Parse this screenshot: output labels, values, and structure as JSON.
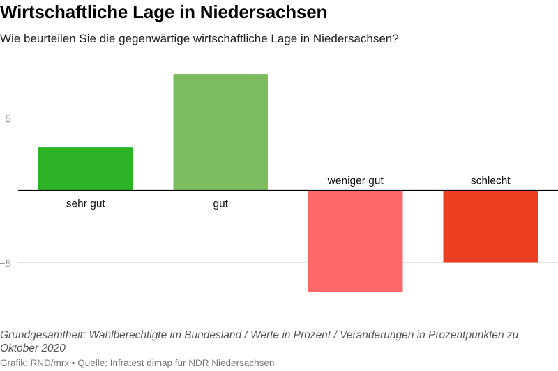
{
  "chart_data": {
    "type": "bar",
    "title": "Wirtschaftliche Lage in Niedersachsen",
    "subtitle": "Wie beurteilen Sie die gegenwärtige wirtschaftliche Lage in Niedersachsen?",
    "categories": [
      "sehr gut",
      "gut",
      "weniger gut",
      "schlecht"
    ],
    "values": [
      3,
      8,
      -7,
      -5
    ],
    "colors": [
      "#2db426",
      "#7bbd5e",
      "#fe6968",
      "#ec3e21"
    ],
    "yticks": [
      5,
      -5
    ],
    "ytick_labels": [
      "5",
      "−5"
    ],
    "ylim": [
      -9.2,
      9.9
    ],
    "grid": true,
    "xlabel": "",
    "ylabel": ""
  },
  "note": "Grundgesamtheit: Wahlberechtigte im Bundesland / Werte in Prozent / Veränderungen in Prozentpunkten zu Oktober 2020",
  "credit": "Grafik: RND/mrx • Quelle: Infratest dimap für NDR Niedersachsen"
}
